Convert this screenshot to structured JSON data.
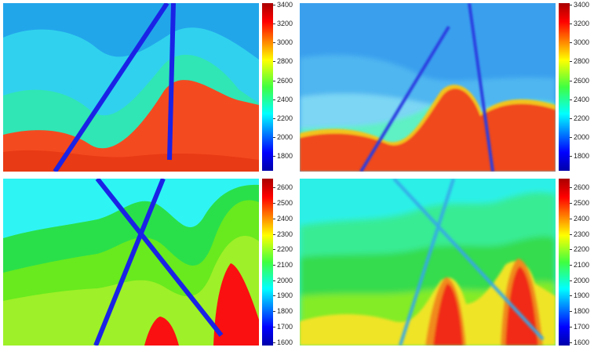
{
  "chart_data": [
    {
      "type": "heatmap",
      "panel": "top-left",
      "title": "",
      "colormap": "jet",
      "colorbar": {
        "min": 1650,
        "max": 3420,
        "ticks": [
          "1800",
          "2000",
          "2200",
          "2400",
          "2600",
          "2800",
          "3000",
          "3200",
          "3400"
        ]
      },
      "layers": [
        {
          "name": "",
          "value": 2100,
          "color": "#22a6ea"
        },
        {
          "name": "",
          "value": 2250,
          "color": "#30d1ee"
        },
        {
          "name": "",
          "value": 2550,
          "color": "#30e6b4"
        },
        {
          "name": "",
          "value": 3400,
          "color": "#f44a20"
        }
      ],
      "anomaly_value": 1650
    },
    {
      "type": "heatmap",
      "panel": "top-right",
      "title": "",
      "colormap": "jet",
      "colorbar": {
        "min": 1650,
        "max": 3420,
        "ticks": [
          "1800",
          "2000",
          "2200",
          "2400",
          "2600",
          "2800",
          "3000",
          "3200",
          "3400"
        ]
      },
      "anomaly_value": 1700
    },
    {
      "type": "heatmap",
      "panel": "bottom-left",
      "title": "",
      "colormap": "jet",
      "colorbar": {
        "min": 1580,
        "max": 2660,
        "ticks": [
          "1600",
          "1700",
          "1800",
          "1900",
          "2000",
          "2100",
          "2200",
          "2300",
          "2400",
          "2500",
          "2600"
        ]
      },
      "layers": [
        {
          "name": "",
          "value": 1950,
          "color": "#2ff4f4"
        },
        {
          "name": "",
          "value": 2150,
          "color": "#2ae04a"
        },
        {
          "name": "",
          "value": 2250,
          "color": "#68ea1e"
        },
        {
          "name": "",
          "value": 2350,
          "color": "#9ef028"
        },
        {
          "name": "",
          "value": 2650,
          "color": "#fa1010"
        }
      ],
      "anomaly_value": 1600
    },
    {
      "type": "heatmap",
      "panel": "bottom-right",
      "title": "",
      "colormap": "jet",
      "colorbar": {
        "min": 1580,
        "max": 2660,
        "ticks": [
          "1600",
          "1700",
          "1800",
          "1900",
          "2000",
          "2100",
          "2200",
          "2300",
          "2400",
          "2500",
          "2600"
        ]
      },
      "anomaly_value": 1750
    }
  ]
}
